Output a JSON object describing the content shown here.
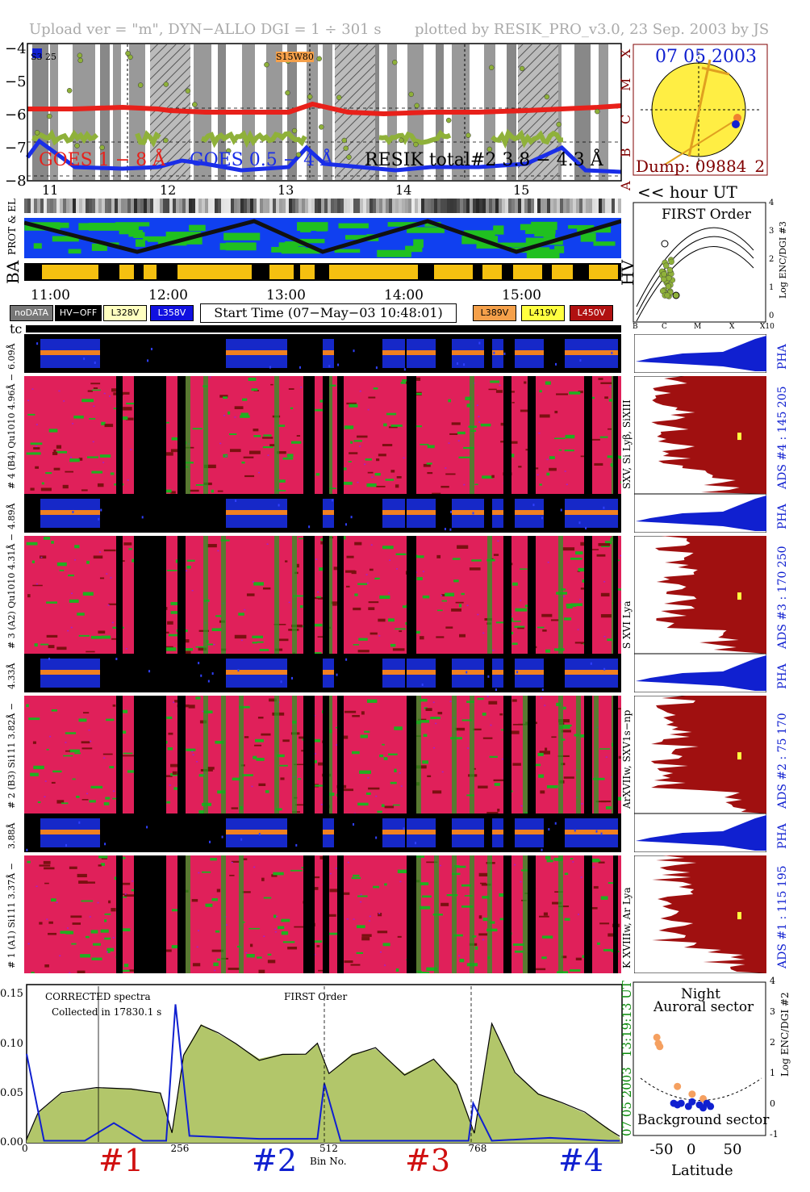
{
  "header": {
    "upload": "Upload ver = \"m\", DYN−ALLO DGI =   1 ÷ 301 s",
    "plotted": "plotted by RESIK_PRO_v3.0, 23 Sep. 2003 by JS"
  },
  "goes": {
    "yticks": [
      "−4",
      "−5",
      "−6",
      "−7",
      "−8"
    ],
    "class_labels": [
      "X",
      "M",
      "C",
      "B",
      "A"
    ],
    "legend_goes1": "GOES 1 − 8 Å",
    "legend_goes05": "GOES 0.5 − 4 Å",
    "legend_resik": "RESIK total#2 3.8 − 4.3 Å",
    "region_left": "S3   25",
    "region_right": "S15W80",
    "hour_ticks": [
      "11",
      "12",
      "13",
      "14",
      "15"
    ],
    "hour_label": "<< hour UT",
    "colors": {
      "goes1": "#e8201a",
      "goes05": "#1a2ee8",
      "resik": "#8fb13a"
    }
  },
  "sun": {
    "date": "07 05 2003",
    "dump": "Dump: 09884_2"
  },
  "strips": {
    "prot_label": "PROT & EL",
    "ba_label": "BA",
    "hv_label": "HV",
    "time_ticks": [
      "11:00",
      "12:00",
      "13:00",
      "14:00",
      "15:00"
    ]
  },
  "legend": {
    "nodata": "noDATA",
    "hvoff": "HV−OFF",
    "l328": "L328V",
    "l358": "L358V",
    "start_time": "Start Time (07−May−03 10:48:01)",
    "l389": "L389V",
    "l419": "L419V",
    "l450": "L450V",
    "colors": {
      "l328": "#ffffc0",
      "l358": "#1010e0",
      "l389": "#f5a04a",
      "l419": "#ffff40",
      "l450": "#b01010"
    }
  },
  "first_order": {
    "title": "FIRST Order",
    "yticks": [
      "4",
      "3",
      "2",
      "1",
      "0"
    ],
    "ylabel": "Log ENC/DGI #3",
    "xticks": [
      "B",
      "C",
      "M",
      "X",
      "X10"
    ]
  },
  "tc_label": "tc",
  "channels": [
    {
      "pha_label": "6.09Å",
      "ads_label": "# 4 (B4) Qu1010 4.96Å −",
      "ads_range": "ADS #4 :   145 205",
      "pha": "PHA",
      "lines": "SXV, Si Lyβ, SiXIII"
    },
    {
      "pha_label": "4.89Å",
      "ads_label": "# 3 (A2) Qu1010  4.31Å −",
      "ads_range": "ADS #3 :   170 250",
      "pha": "PHA",
      "lines": "S XVI Lya"
    },
    {
      "pha_label": "4.33Å",
      "ads_label": "# 2 (B3) Si111  3.82Å −",
      "ads_range": "ADS #2 :   75 170",
      "pha": "PHA",
      "lines": "ArXVIIw, SXV1s−np"
    },
    {
      "pha_label": "3.88Å",
      "ads_label": "# 1 (A1) Si111  3.37Å −",
      "ads_range": "ADS #1 :   115 195",
      "pha": "PHA",
      "lines": "K XVIIIw, Ar Lya"
    }
  ],
  "spectrum": {
    "text1": "CORRECTED spectra",
    "text2": "Collected in 17830.1 s",
    "text3": "FIRST Order",
    "time": "13:19:13 UT",
    "date": "07 05 2003",
    "xlabel": "Bin No.",
    "channel_labels": [
      "#1",
      "#2",
      "#3",
      "#4"
    ],
    "channel_colors": [
      "#d01010",
      "#1020d0",
      "#d01010",
      "#1020d0"
    ]
  },
  "chart_data": [
    {
      "type": "line",
      "title": "",
      "ylabel": "",
      "ylim": [
        -8.2,
        -4
      ],
      "xlim": [
        10.8,
        15.8
      ],
      "series": [
        {
          "name": "GOES 1 − 8 Å",
          "x": [
            10.8,
            11.2,
            11.6,
            11.9,
            12.0,
            12.3,
            12.6,
            13.0,
            13.2,
            13.5,
            13.8,
            14.2,
            14.6,
            15.0,
            15.3,
            15.6,
            15.8
          ],
          "y": [
            -6.0,
            -6.0,
            -5.95,
            -6.0,
            -6.05,
            -6.1,
            -6.1,
            -6.1,
            -5.85,
            -6.1,
            -6.15,
            -6.1,
            -6.1,
            -6.05,
            -6.0,
            -5.95,
            -5.9
          ]
        },
        {
          "name": "GOES 0.5 − 4 Å",
          "x": [
            10.8,
            10.9,
            11.2,
            11.6,
            11.9,
            12.1,
            12.3,
            12.6,
            13.0,
            13.15,
            13.3,
            13.6,
            13.9,
            14.2,
            14.6,
            15.0,
            15.3,
            15.5,
            15.8
          ],
          "y": [
            -7.5,
            -7.0,
            -7.8,
            -7.85,
            -7.8,
            -7.6,
            -7.7,
            -7.9,
            -7.8,
            -7.2,
            -7.7,
            -7.8,
            -7.9,
            -7.8,
            -7.8,
            -7.7,
            -7.2,
            -7.9,
            -7.95
          ]
        }
      ]
    },
    {
      "type": "line",
      "title": "",
      "xlabel": "Bin No.",
      "ylim": [
        0,
        0.16
      ],
      "xlim": [
        0,
        1024
      ],
      "xticks": [
        0,
        256,
        512,
        768
      ],
      "yticks": [
        0.0,
        0.05,
        0.1,
        0.15
      ],
      "series": [
        {
          "name": "",
          "x": [
            0,
            20,
            60,
            120,
            180,
            230,
            250,
            270,
            300,
            330,
            360,
            400,
            440,
            480,
            500,
            520,
            560,
            600,
            650,
            700,
            740,
            770,
            800,
            840,
            880,
            920,
            960,
            1000,
            1020
          ],
          "y": [
            0.002,
            0.03,
            0.05,
            0.055,
            0.055,
            0.05,
            0.01,
            0.09,
            0.12,
            0.11,
            0.1,
            0.085,
            0.09,
            0.09,
            0.1,
            0.07,
            0.09,
            0.095,
            0.07,
            0.085,
            0.06,
            0.01,
            0.12,
            0.07,
            0.05,
            0.04,
            0.03,
            0.015,
            0.005
          ]
        },
        {
          "name": "",
          "x": [
            0,
            30,
            100,
            150,
            200,
            240,
            256,
            280,
            400,
            500,
            512,
            540,
            640,
            700,
            760,
            768,
            800,
            900,
            1000,
            1020
          ],
          "y": [
            0.09,
            0.002,
            0.002,
            0.02,
            0.002,
            0.002,
            0.14,
            0.007,
            0.004,
            0.004,
            0.06,
            0.002,
            0.002,
            0.002,
            0.002,
            0.04,
            0.002,
            0.005,
            0.002,
            0.002
          ]
        }
      ]
    },
    {
      "type": "scatter",
      "title": "",
      "xlabel": "Latitude",
      "ylabel": "Log ENC/DGI #2",
      "xlim": [
        -90,
        90
      ],
      "ylim": [
        -1,
        4
      ],
      "xticks": [
        -50,
        0,
        50
      ],
      "yticks": [
        -1,
        0,
        1,
        2,
        3,
        4
      ],
      "series": [
        {
          "name": "",
          "x": [
            -58,
            -56,
            -54,
            -30,
            -10,
            5
          ],
          "y": [
            2.2,
            2.0,
            1.9,
            0.6,
            0.35,
            0.2
          ]
        },
        {
          "name": "",
          "x": [
            -35,
            -30,
            -25,
            -15,
            -10,
            0,
            5,
            10,
            15
          ],
          "y": [
            0.05,
            0.0,
            0.05,
            -0.05,
            0.1,
            0.0,
            -0.1,
            0.05,
            -0.05
          ]
        }
      ],
      "labels": [
        "Night",
        "Auroral sector",
        "Background sector"
      ]
    }
  ]
}
